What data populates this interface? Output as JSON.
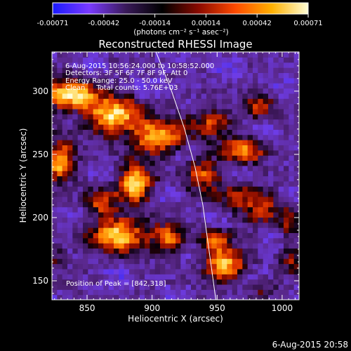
{
  "chart_data": {
    "type": "heatmap",
    "title": "Reconstructed RHESSI Image",
    "xlabel": "Heliocentric X (arcsec)",
    "ylabel": "Heliocentric Y (arcsec)",
    "xlim": [
      823,
      1013
    ],
    "ylim": [
      135,
      331
    ],
    "xticks": [
      850,
      900,
      950,
      1000
    ],
    "yticks": [
      150,
      200,
      250,
      300
    ],
    "colorbar": {
      "ticks": [
        "-0.00071",
        "-0.00042",
        "-0.00014",
        "0.00014",
        "0.00042",
        "0.00071"
      ],
      "unit_label": "(photons cm⁻² s⁻¹ asec⁻²)",
      "colors": [
        "#1a1aff",
        "#7a3aff",
        "#3a1a5a",
        "#000000",
        "#8a0a00",
        "#ff4a00",
        "#ffb000",
        "#ffffd8"
      ]
    },
    "info_lines": [
      "6-Aug-2015 10:56:24.000 to 10:58:52.000",
      "Detectors: 3F 5F 6F 7F 8F 9F, Att 0",
      "Energy Range: 25.0 - 50.0 keV",
      "Clean     Total counts: 5.76E+03"
    ],
    "peak_label": "Position of Peak = [842,318]",
    "peak": [
      842,
      318
    ],
    "limb_curve": [
      [
        903,
        331
      ],
      [
        915,
        300
      ],
      [
        925,
        270
      ],
      [
        933,
        240
      ],
      [
        939,
        210
      ],
      [
        943,
        180
      ],
      [
        947,
        150
      ],
      [
        949,
        135
      ]
    ],
    "blobs": [
      {
        "x": 838,
        "y": 297,
        "sx": 14,
        "sy": 9,
        "amp": 1.0
      },
      {
        "x": 872,
        "y": 281,
        "sx": 14,
        "sy": 10,
        "amp": 0.9
      },
      {
        "x": 905,
        "y": 264,
        "sx": 16,
        "sy": 9,
        "amp": 0.8
      },
      {
        "x": 828,
        "y": 246,
        "sx": 8,
        "sy": 11,
        "amp": 0.85
      },
      {
        "x": 887,
        "y": 227,
        "sx": 10,
        "sy": 11,
        "amp": 0.85
      },
      {
        "x": 860,
        "y": 212,
        "sx": 9,
        "sy": 8,
        "amp": 0.55
      },
      {
        "x": 876,
        "y": 186,
        "sx": 16,
        "sy": 9,
        "amp": 0.9
      },
      {
        "x": 913,
        "y": 185,
        "sx": 9,
        "sy": 7,
        "amp": 0.6
      },
      {
        "x": 938,
        "y": 234,
        "sx": 9,
        "sy": 9,
        "amp": 0.55
      },
      {
        "x": 945,
        "y": 277,
        "sx": 10,
        "sy": 9,
        "amp": 0.55
      },
      {
        "x": 970,
        "y": 253,
        "sx": 11,
        "sy": 7,
        "amp": 0.75
      },
      {
        "x": 982,
        "y": 289,
        "sx": 8,
        "sy": 7,
        "amp": 0.5
      },
      {
        "x": 965,
        "y": 215,
        "sx": 12,
        "sy": 10,
        "amp": 0.45
      },
      {
        "x": 985,
        "y": 207,
        "sx": 7,
        "sy": 9,
        "amp": 0.45
      },
      {
        "x": 948,
        "y": 183,
        "sx": 8,
        "sy": 6,
        "amp": 0.55
      },
      {
        "x": 955,
        "y": 164,
        "sx": 12,
        "sy": 9,
        "amp": 0.8
      },
      {
        "x": 1005,
        "y": 198,
        "sx": 7,
        "sy": 12,
        "amp": 0.45
      },
      {
        "x": 828,
        "y": 168,
        "sx": 7,
        "sy": 7,
        "amp": 0.4
      },
      {
        "x": 1008,
        "y": 165,
        "sx": 6,
        "sy": 7,
        "amp": 0.35
      },
      {
        "x": 985,
        "y": 145,
        "sx": 8,
        "sy": 6,
        "amp": 0.3
      }
    ]
  },
  "footer": {
    "timestamp": "6-Aug-2015 20:58"
  }
}
